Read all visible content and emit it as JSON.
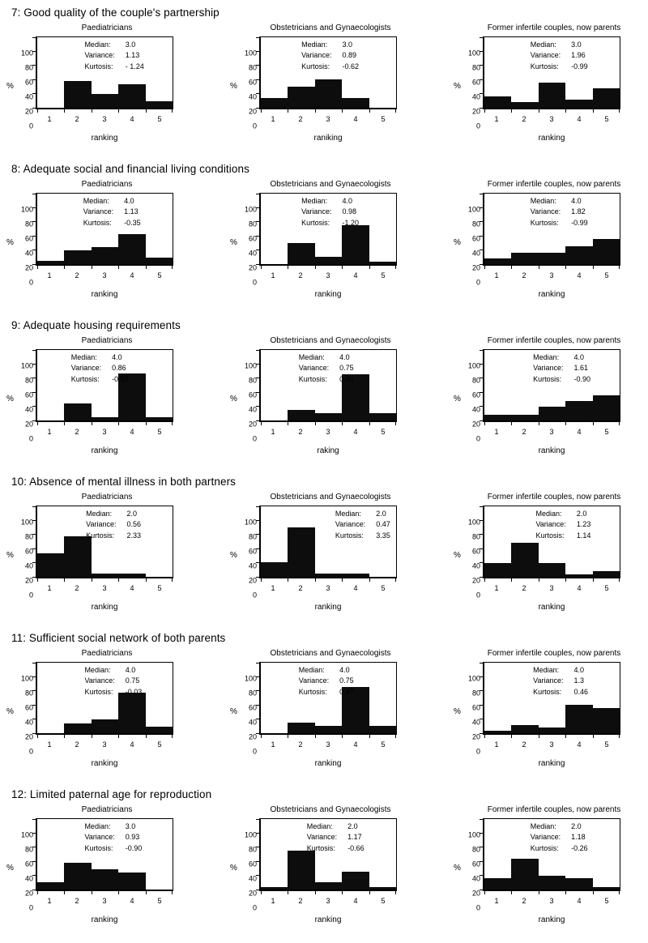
{
  "page": {
    "background": "#ffffff",
    "text_color": "#000000",
    "bar_color": "#0d0d0d"
  },
  "stats_labels": {
    "median": "Median:",
    "variance": "Variance:",
    "kurtosis": "Kurtosis:"
  },
  "chart_data": [
    {
      "row_title": "7: Good quality of the couple's partnership",
      "charts": [
        {
          "type": "bar",
          "title": "Paediatricians",
          "categories": [
            "1",
            "2",
            "3",
            "4",
            "5"
          ],
          "values": [
            0,
            38,
            19,
            33,
            9
          ],
          "xlabel": "ranking",
          "ylabel": "%",
          "ylim": [
            0,
            100
          ],
          "y_ticks": [
            "0",
            "20",
            "40",
            "60",
            "80",
            "100"
          ],
          "stats": {
            "median": "3.0",
            "variance": "1.13",
            "kurtosis": "- 1.24"
          },
          "stats_left_pct": 35
        },
        {
          "type": "bar",
          "title": "Obstetricians and Gynaecologists",
          "categories": [
            "1",
            "2",
            "3",
            "4",
            "5"
          ],
          "values": [
            14,
            30,
            40,
            14,
            0
          ],
          "xlabel": "raniking",
          "ylabel": "%",
          "ylim": [
            0,
            100
          ],
          "y_ticks": [
            "0",
            "20",
            "40",
            "60",
            "80",
            "100"
          ],
          "stats": {
            "median": "3.0",
            "variance": "0.89",
            "kurtosis": "-0.62"
          },
          "stats_left_pct": 30
        },
        {
          "type": "bar",
          "title": "Former infertile couples, now parents",
          "categories": [
            "1",
            "2",
            "3",
            "4",
            "5"
          ],
          "values": [
            16,
            8,
            36,
            12,
            28
          ],
          "xlabel": "ranking",
          "ylabel": "%",
          "ylim": [
            0,
            100
          ],
          "y_ticks": [
            "0",
            "20",
            "40",
            "60",
            "80",
            "100"
          ],
          "stats": {
            "median": "3.0",
            "variance": "1.96",
            "kurtosis": "-0.99"
          },
          "stats_left_pct": 34
        }
      ]
    },
    {
      "row_title": "8: Adequate social and financial living conditions",
      "charts": [
        {
          "type": "bar",
          "title": "Paediatricians",
          "categories": [
            "1",
            "2",
            "3",
            "4",
            "5"
          ],
          "values": [
            5,
            19,
            24,
            43,
            9
          ],
          "xlabel": "ranking",
          "ylabel": "%",
          "ylim": [
            0,
            100
          ],
          "y_ticks": [
            "0",
            "20",
            "40",
            "60",
            "80",
            "100"
          ],
          "stats": {
            "median": "4.0",
            "variance": "1.13",
            "kurtosis": "-0.35"
          },
          "stats_left_pct": 34
        },
        {
          "type": "bar",
          "title": "Obstetricians and Gynaecologists",
          "categories": [
            "1",
            "2",
            "3",
            "4",
            "5"
          ],
          "values": [
            0,
            30,
            10,
            55,
            4
          ],
          "xlabel": "ranking",
          "ylabel": "%",
          "ylim": [
            0,
            100
          ],
          "y_ticks": [
            "0",
            "20",
            "40",
            "60",
            "80",
            "100"
          ],
          "stats": {
            "median": "4.0",
            "variance": "0.98",
            "kurtosis": "-1.20"
          },
          "stats_left_pct": 30
        },
        {
          "type": "bar",
          "title": "Former infertile couples, now parents",
          "categories": [
            "1",
            "2",
            "3",
            "4",
            "5"
          ],
          "values": [
            8,
            16,
            16,
            25,
            36
          ],
          "xlabel": "ranking",
          "ylabel": "%",
          "ylim": [
            0,
            100
          ],
          "y_ticks": [
            "0",
            "20",
            "40",
            "60",
            "80",
            "100"
          ],
          "stats": {
            "median": "4.0",
            "variance": "1.82",
            "kurtosis": "-0.99"
          },
          "stats_left_pct": 34
        }
      ]
    },
    {
      "row_title": "9: Adequate housing requirements",
      "charts": [
        {
          "type": "bar",
          "title": "Paediatricians",
          "categories": [
            "1",
            "2",
            "3",
            "4",
            "5"
          ],
          "values": [
            0,
            24,
            5,
            67,
            5
          ],
          "xlabel": "ranking",
          "ylabel": "%",
          "ylim": [
            0,
            100
          ],
          "y_ticks": [
            "0",
            "20",
            "40",
            "60",
            "80",
            "100"
          ],
          "stats": {
            "median": "4.0",
            "variance": "0.86",
            "kurtosis": "-0.52"
          },
          "stats_left_pct": 25
        },
        {
          "type": "bar",
          "title": "Obstetricians and Gynaecologists",
          "categories": [
            "1",
            "2",
            "3",
            "4",
            "5"
          ],
          "values": [
            0,
            15,
            10,
            65,
            10
          ],
          "xlabel": "raking",
          "ylabel": "%",
          "ylim": [
            0,
            100
          ],
          "y_ticks": [
            "0",
            "20",
            "40",
            "60",
            "80",
            "100"
          ],
          "stats": {
            "median": "4.0",
            "variance": "0.75",
            "kurtosis": "0.46"
          },
          "stats_left_pct": 28
        },
        {
          "type": "bar",
          "title": "Former infertile couples, now parents",
          "categories": [
            "1",
            "2",
            "3",
            "4",
            "5"
          ],
          "values": [
            8,
            8,
            20,
            28,
            36
          ],
          "xlabel": "ranking",
          "ylabel": "%",
          "ylim": [
            0,
            100
          ],
          "y_ticks": [
            "0",
            "20",
            "40",
            "60",
            "80",
            "100"
          ],
          "stats": {
            "median": "4.0",
            "variance": "1.61",
            "kurtosis": "-0.90"
          },
          "stats_left_pct": 36
        }
      ]
    },
    {
      "row_title": "10: Absence of mental illness in both partners",
      "charts": [
        {
          "type": "bar",
          "title": "Paediatricians",
          "categories": [
            "1",
            "2",
            "3",
            "4",
            "5"
          ],
          "values": [
            33,
            57,
            5,
            5,
            0
          ],
          "xlabel": "ranking",
          "ylabel": "%",
          "ylim": [
            0,
            100
          ],
          "y_ticks": [
            "0",
            "20",
            "40",
            "60",
            "80",
            "100"
          ],
          "stats": {
            "median": "2.0",
            "variance": "0.56",
            "kurtosis": "2.33"
          },
          "stats_left_pct": 36
        },
        {
          "type": "bar",
          "title": "Obstetricians and Gynaecologists",
          "categories": [
            "1",
            "2",
            "3",
            "4",
            "5"
          ],
          "values": [
            21,
            70,
            5,
            5,
            0
          ],
          "xlabel": "ranking",
          "ylabel": "%",
          "ylim": [
            0,
            100
          ],
          "y_ticks": [
            "0",
            "20",
            "40",
            "60",
            "80",
            "100"
          ],
          "stats": {
            "median": "2.0",
            "variance": "0.47",
            "kurtosis": "3.35"
          },
          "stats_left_pct": 55
        },
        {
          "type": "bar",
          "title": "Former infertile couples, now parents",
          "categories": [
            "1",
            "2",
            "3",
            "4",
            "5"
          ],
          "values": [
            20,
            48,
            20,
            4,
            8
          ],
          "xlabel": "ranking",
          "ylabel": "%",
          "ylim": [
            0,
            100
          ],
          "y_ticks": [
            "0",
            "20",
            "40",
            "60",
            "80",
            "100"
          ],
          "stats": {
            "median": "2.0",
            "variance": "1.23",
            "kurtosis": "1.14"
          },
          "stats_left_pct": 38
        }
      ]
    },
    {
      "row_title": "11: Sufficient social network of both parents",
      "charts": [
        {
          "type": "bar",
          "title": "Paediatricians",
          "categories": [
            "1",
            "2",
            "3",
            "4",
            "5"
          ],
          "values": [
            0,
            14,
            19,
            57,
            9
          ],
          "xlabel": "ranking",
          "ylabel": "%",
          "ylim": [
            0,
            100
          ],
          "y_ticks": [
            "0",
            "20",
            "40",
            "60",
            "80",
            "100"
          ],
          "stats": {
            "median": "4.0",
            "variance": "0.75",
            "kurtosis": "-0.03"
          },
          "stats_left_pct": 35
        },
        {
          "type": "bar",
          "title": "Obstetricians and Gynaecologists",
          "categories": [
            "1",
            "2",
            "3",
            "4",
            "5"
          ],
          "values": [
            0,
            15,
            10,
            65,
            10
          ],
          "xlabel": "ranking",
          "ylabel": "%",
          "ylim": [
            0,
            100
          ],
          "y_ticks": [
            "0",
            "20",
            "40",
            "60",
            "80",
            "100"
          ],
          "stats": {
            "median": "4.0",
            "variance": "0.75",
            "kurtosis": "0.47"
          },
          "stats_left_pct": 28
        },
        {
          "type": "bar",
          "title": "Former infertile couples, now parents",
          "categories": [
            "1",
            "2",
            "3",
            "4",
            "5"
          ],
          "values": [
            4,
            12,
            8,
            40,
            36
          ],
          "xlabel": "ranking",
          "ylabel": "%",
          "ylim": [
            0,
            100
          ],
          "y_ticks": [
            "0",
            "20",
            "40",
            "60",
            "80",
            "100"
          ],
          "stats": {
            "median": "4.0",
            "variance": "1.3",
            "kurtosis": "0.46"
          },
          "stats_left_pct": 36
        }
      ]
    },
    {
      "row_title": "12: Limited paternal age for reproduction",
      "charts": [
        {
          "type": "bar",
          "title": "Paediatricians",
          "categories": [
            "1",
            "2",
            "3",
            "4",
            "5"
          ],
          "values": [
            10,
            38,
            29,
            24,
            0
          ],
          "xlabel": "ranking",
          "ylabel": "%",
          "ylim": [
            0,
            100
          ],
          "y_ticks": [
            "0",
            "20",
            "40",
            "60",
            "80",
            "100"
          ],
          "stats": {
            "median": "3.0",
            "variance": "0.93",
            "kurtosis": "-0.90"
          },
          "stats_left_pct": 35
        },
        {
          "type": "bar",
          "title": "Obstetricians and Gynaecologists",
          "categories": [
            "1",
            "2",
            "3",
            "4",
            "5"
          ],
          "values": [
            4,
            55,
            10,
            25,
            4
          ],
          "xlabel": "ranking",
          "ylabel": "%",
          "ylim": [
            0,
            100
          ],
          "y_ticks": [
            "0",
            "20",
            "40",
            "60",
            "80",
            "100"
          ],
          "stats": {
            "median": "2.0",
            "variance": "1.17",
            "kurtosis": "-0.66"
          },
          "stats_left_pct": 34
        },
        {
          "type": "bar",
          "title": "Former infertile couples, now parents",
          "categories": [
            "1",
            "2",
            "3",
            "4",
            "5"
          ],
          "values": [
            16,
            44,
            20,
            16,
            4
          ],
          "xlabel": "ranking",
          "ylabel": "%",
          "ylim": [
            0,
            100
          ],
          "y_ticks": [
            "0",
            "20",
            "40",
            "60",
            "80",
            "100"
          ],
          "stats": {
            "median": "2.0",
            "variance": "1.18",
            "kurtosis": "-0.26"
          },
          "stats_left_pct": 34
        }
      ]
    }
  ]
}
